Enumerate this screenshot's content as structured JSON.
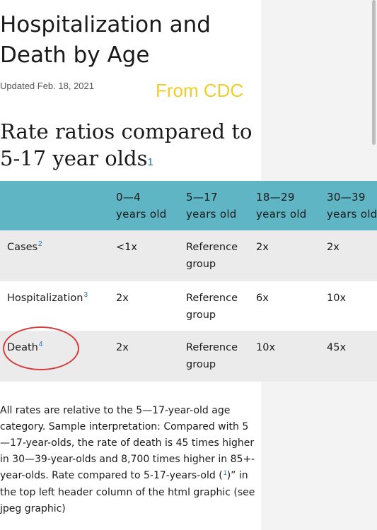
{
  "page": {
    "title": "Hospitalization and Death by Age",
    "updated": "Updated Feb. 18, 2021",
    "overlay_note": "From CDC"
  },
  "section": {
    "title": "Rate ratios compared to 5-17 year olds",
    "footnote_ref": "1"
  },
  "table": {
    "headers": [
      {
        "line1": "",
        "line2": ""
      },
      {
        "line1": "0—4",
        "line2": "years old"
      },
      {
        "line1": "5—17",
        "line2": "years old"
      },
      {
        "line1": "18—29",
        "line2": "years old"
      },
      {
        "line1": "30—39",
        "line2": "years old"
      }
    ],
    "rows": [
      {
        "label": "Cases",
        "ref": "2",
        "values": [
          "<1x",
          "Reference",
          "group",
          "2x",
          "2x"
        ]
      },
      {
        "label": "Hospitalization",
        "ref": "3",
        "values": [
          "2x",
          "Reference",
          "group",
          "6x",
          "10x"
        ]
      },
      {
        "label": "Death",
        "ref": "4",
        "values": [
          "2x",
          "Reference",
          "group",
          "10x",
          "45x"
        ]
      }
    ]
  },
  "footnote": {
    "text_before": "All rates are relative to the 5—17-year-old age category. Sample interpretation: Compared with 5—17-year-olds, the rate of death is 45 times higher in 30—39-year-olds and 8,700 times higher in 85+-year-olds. Rate compared to 5-17-years-old (",
    "ref": "1",
    "text_after": ")” in the top left header column of the html graphic (see jpeg graphic)"
  },
  "colors": {
    "header_bg": "#5fb5c4",
    "row_shade": "#ebebeb",
    "annotation_circle": "#d63c3c",
    "overlay_text": "#f2cc2c",
    "link": "#1f6fb3"
  }
}
